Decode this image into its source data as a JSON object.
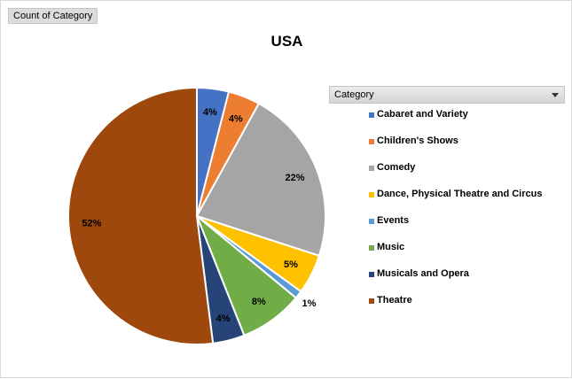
{
  "field_button": {
    "label": "Count of Category"
  },
  "legend": {
    "header": "Category"
  },
  "chart_data": {
    "type": "pie",
    "title": "USA",
    "legend_placement": "right",
    "slices": [
      {
        "name": "Cabaret and Variety",
        "value": 4,
        "label": "4%",
        "color": "#4472C4"
      },
      {
        "name": "Children's Shows",
        "value": 4,
        "label": "4%",
        "color": "#ED7D31"
      },
      {
        "name": "Comedy",
        "value": 22,
        "label": "22%",
        "color": "#A5A5A5"
      },
      {
        "name": "Dance, Physical Theatre and Circus",
        "value": 5,
        "label": "5%",
        "color": "#FFC000"
      },
      {
        "name": "Events",
        "value": 1,
        "label": "1%",
        "color": "#5B9BD5"
      },
      {
        "name": "Music",
        "value": 8,
        "label": "8%",
        "color": "#70AD47"
      },
      {
        "name": "Musicals and Opera",
        "value": 4,
        "label": "4%",
        "color": "#264478"
      },
      {
        "name": "Theatre",
        "value": 52,
        "label": "52%",
        "color": "#9E480E"
      }
    ]
  }
}
